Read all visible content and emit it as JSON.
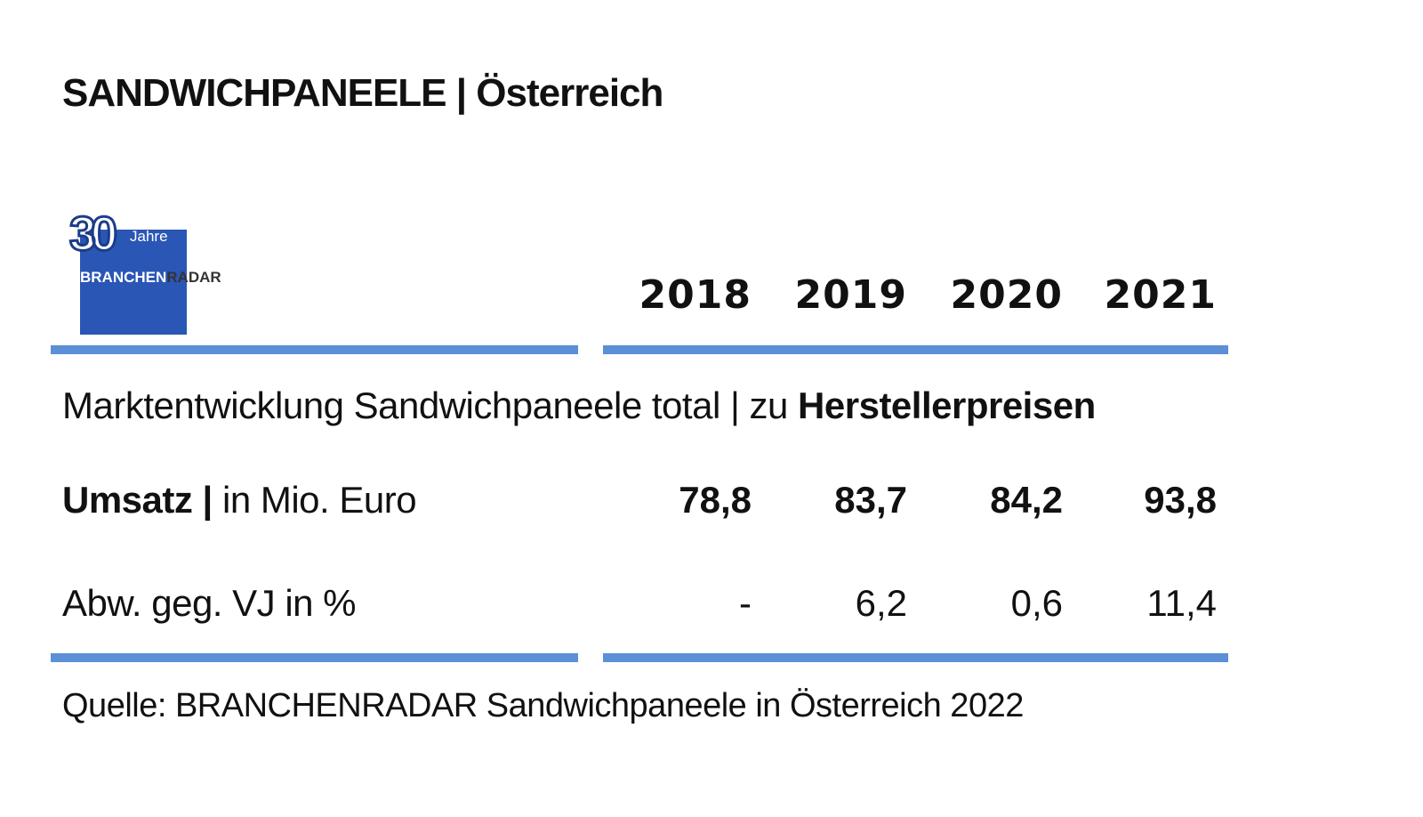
{
  "title": "SANDWICHPANEELE | Österreich",
  "logo": {
    "number": "30",
    "jahre": "Jahre",
    "word_part1": "BRANCHEN",
    "word_part2": "RADAR"
  },
  "subtitle": {
    "prefix": "Marktentwicklung Sandwichpaneele total | zu ",
    "bold": "Herstellerpreisen"
  },
  "source": "Quelle: BRANCHENRADAR Sandwichpaneele in Österreich 2022",
  "colors": {
    "rule": "#5b8fd6",
    "logo_blue": "#2a56b5"
  },
  "chart_data": {
    "type": "table",
    "title": "SANDWICHPANEELE | Österreich",
    "subtitle": "Marktentwicklung Sandwichpaneele total | zu Herstellerpreisen",
    "columns": [
      "2018",
      "2019",
      "2020",
      "2021"
    ],
    "rows": [
      {
        "label_bold": "Umsatz |",
        "label_rest": " in Mio. Euro",
        "bold": true,
        "values": [
          "78,8",
          "83,7",
          "84,2",
          "93,8"
        ]
      },
      {
        "label_bold": "",
        "label_rest": "Abw. geg. VJ in %",
        "bold": false,
        "values": [
          "-",
          "6,2",
          "0,6",
          "11,4"
        ]
      }
    ]
  }
}
